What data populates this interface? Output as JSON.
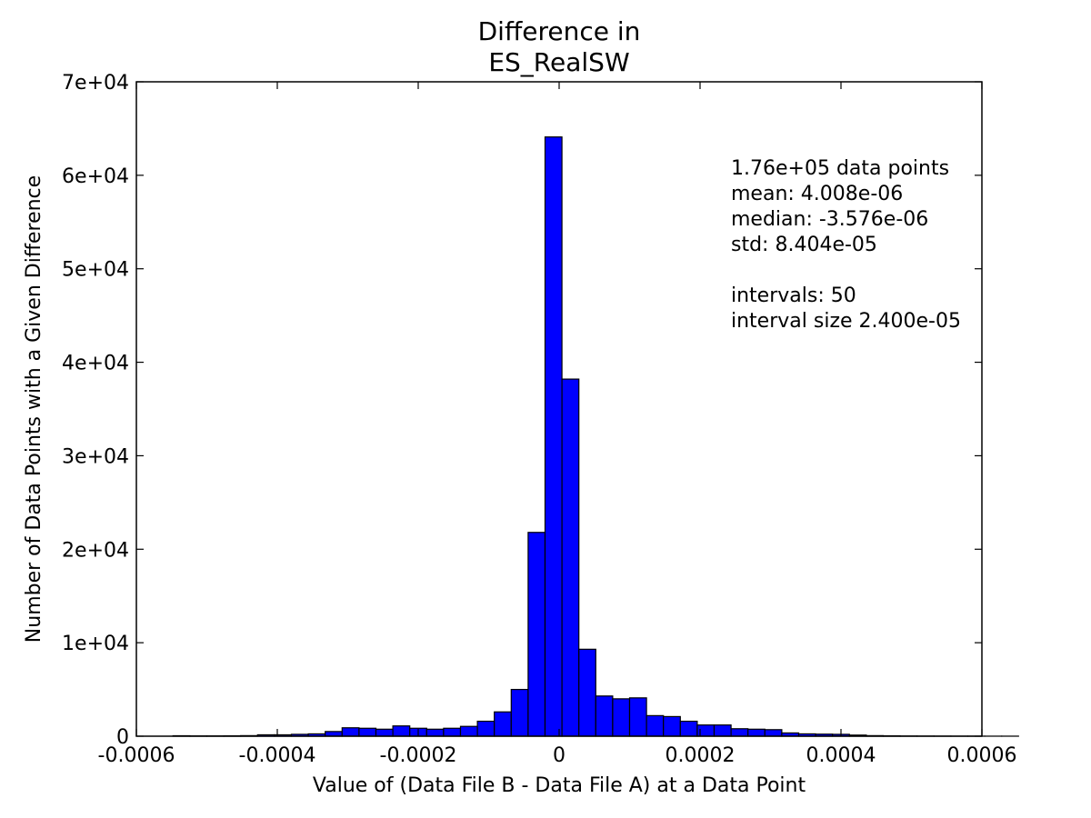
{
  "chart_data": {
    "type": "bar",
    "title": [
      "Difference in",
      "ES_RealSW"
    ],
    "xlabel": "Value of (Data File B - Data File A) at a Data Point",
    "ylabel": "Number of Data Points with a Given Difference",
    "xlim": [
      -0.0006,
      0.0006
    ],
    "ylim": [
      0,
      70000
    ],
    "xticks": [
      -0.0006,
      -0.0004,
      -0.0002,
      0,
      0.0002,
      0.0004,
      0.0006
    ],
    "xtick_labels": [
      "-0.0006",
      "-0.0004",
      "-0.0002",
      "0",
      "0.0002",
      "0.0004",
      "0.0006"
    ],
    "yticks": [
      0,
      10000,
      20000,
      30000,
      40000,
      50000,
      60000,
      70000
    ],
    "ytick_labels": [
      "0",
      "1e+04",
      "2e+04",
      "3e+04",
      "4e+04",
      "5e+04",
      "6e+04",
      "7e+04"
    ],
    "bin_start": -0.000548,
    "bin_width": 2.4e-05,
    "values": [
      50,
      30,
      30,
      40,
      60,
      150,
      150,
      200,
      250,
      500,
      900,
      850,
      750,
      1100,
      850,
      750,
      850,
      1050,
      1600,
      2600,
      5000,
      21800,
      64100,
      38200,
      9300,
      4300,
      4000,
      4100,
      2200,
      2100,
      1600,
      1200,
      1200,
      800,
      750,
      700,
      350,
      250,
      220,
      200,
      120,
      60,
      40,
      20,
      15,
      10,
      5,
      5,
      5,
      5
    ],
    "bar_color": "#0000ff",
    "edge_color": "#000000",
    "grid": false,
    "annotation": [
      "1.76e+05 data points",
      "mean: 4.008e-06",
      "median: -3.576e-06",
      "std: 8.404e-05",
      "",
      "intervals: 50",
      "interval size 2.400e-05"
    ]
  }
}
